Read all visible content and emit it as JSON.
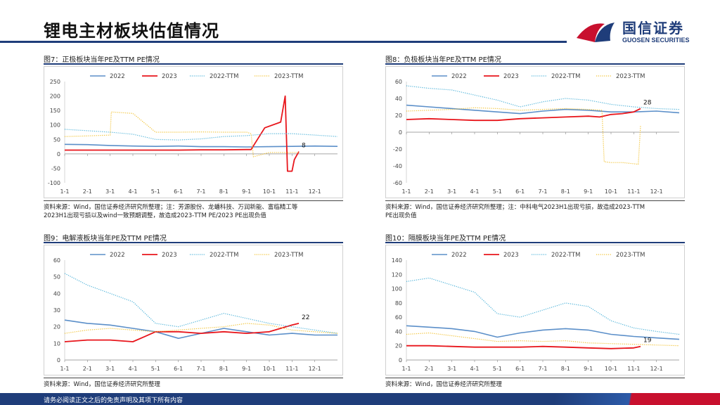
{
  "page": {
    "title": "锂电主材板块估值情况",
    "logo_cn": "国信证券",
    "logo_en": "GUOSEN SECURITIES",
    "footer": "请务必阅读正文之后的免责声明及其项下所有内容",
    "brand_colors": {
      "navy": "#1f3d7a",
      "red": "#c8102e"
    }
  },
  "legend": [
    "2022",
    "2023",
    "2022-TTM",
    "2023-TTM"
  ],
  "series_colors": {
    "2022": "#5b8fc9",
    "2023": "#e8151b",
    "2022-TTM": "#4fb3d9",
    "2023-TTM": "#f2c232"
  },
  "x_ticks": [
    "1-1",
    "2-1",
    "3-1",
    "4-1",
    "5-1",
    "6-1",
    "7-1",
    "8-1",
    "9-1",
    "10-1",
    "11-1",
    "12-1"
  ],
  "panels": [
    {
      "caption": "图7：正极板块当年PE及TTM PE情况",
      "source": "资料来源：Wind，国信证券经济研究所整理；注：芳源股份、龙蟠科技、万润新能、富临精工等",
      "source2": "2023H1出现亏损以及wind一致预期调整，故造成2023-TTM PE/2023 PE出现负值"
    },
    {
      "caption": "图8：负极板块当年PE及TTM PE情况",
      "source": "资料来源：Wind，国信证券经济研究所整理；注：中科电气2023H1出现亏损，故造成2023-TTM",
      "source2": "PE出现负值"
    },
    {
      "caption": "图9：电解液板块当年PE及TTM PE情况",
      "source": "资料来源：Wind，国信证券经济研究所整理",
      "source2": ""
    },
    {
      "caption": "图10：隔膜板块当年PE及TTM PE情况",
      "source": "资料来源：Wind，国信证券经济研究所整理",
      "source2": ""
    }
  ],
  "chart_data": [
    {
      "type": "line",
      "ylim": [
        -100,
        250
      ],
      "yticks": [
        -100,
        -50,
        0,
        50,
        100,
        150,
        200,
        250
      ],
      "annotation": {
        "text": "8",
        "x": 10.3,
        "y": 8
      },
      "series": [
        {
          "name": "2022",
          "x": [
            0,
            1,
            2,
            3,
            4,
            5,
            6,
            7,
            8,
            9,
            10,
            11,
            12
          ],
          "values": [
            33,
            32,
            29,
            27,
            26,
            27,
            25,
            25,
            24,
            25,
            26,
            27,
            26
          ]
        },
        {
          "name": "2023",
          "x": [
            0,
            1,
            2,
            3,
            4,
            5,
            6,
            7,
            8,
            8.2,
            8.8,
            9.5,
            9.7,
            9.8,
            9.85,
            10.0,
            10.1,
            10.3
          ],
          "values": [
            13,
            13,
            13,
            13,
            13,
            13,
            14,
            14,
            15,
            15,
            90,
            110,
            200,
            -60,
            -60,
            -60,
            -20,
            8
          ]
        },
        {
          "name": "2022-TTM",
          "x": [
            0,
            1,
            2,
            3,
            4,
            5,
            6,
            7,
            8,
            9,
            10,
            11,
            12
          ],
          "values": [
            85,
            80,
            75,
            68,
            50,
            48,
            52,
            60,
            63,
            70,
            70,
            65,
            60
          ]
        },
        {
          "name": "2023-TTM",
          "x": [
            0,
            1,
            2,
            2.05,
            3,
            4,
            5,
            6,
            7,
            8,
            8.2,
            8.3,
            9,
            9.5,
            10.3
          ],
          "values": [
            60,
            62,
            65,
            145,
            140,
            75,
            75,
            76,
            75,
            75,
            70,
            -10,
            5,
            5,
            5
          ]
        }
      ]
    },
    {
      "type": "line",
      "ylim": [
        -60,
        60
      ],
      "yticks": [
        -60,
        -40,
        -20,
        0,
        20,
        40,
        60
      ],
      "annotation": {
        "text": "28",
        "x": 10.3,
        "y": 28
      },
      "series": [
        {
          "name": "2022",
          "x": [
            0,
            1,
            2,
            3,
            4,
            5,
            6,
            7,
            8,
            9,
            10,
            11,
            12
          ],
          "values": [
            32,
            30,
            28,
            26,
            24,
            22,
            25,
            27,
            26,
            24,
            24,
            25,
            23
          ]
        },
        {
          "name": "2023",
          "x": [
            0,
            1,
            2,
            3,
            4,
            5,
            6,
            7,
            8,
            8.5,
            9,
            9.5,
            10,
            10.3
          ],
          "values": [
            15,
            16,
            15,
            14,
            14,
            16,
            17,
            18,
            19,
            18,
            21,
            22,
            24,
            28
          ]
        },
        {
          "name": "2022-TTM",
          "x": [
            0,
            1,
            2,
            3,
            4,
            5,
            6,
            7,
            8,
            9,
            10,
            11,
            12
          ],
          "values": [
            55,
            52,
            50,
            44,
            38,
            30,
            36,
            40,
            38,
            33,
            30,
            28,
            27
          ]
        },
        {
          "name": "2023-TTM",
          "x": [
            0,
            1,
            2,
            3,
            4,
            5,
            6,
            7,
            8,
            8.6,
            8.7,
            9,
            9.5,
            10.2,
            10.3
          ],
          "values": [
            25,
            26,
            27,
            29,
            28,
            26,
            27,
            28,
            27,
            26,
            -35,
            -36,
            -36,
            -38,
            8
          ]
        }
      ]
    },
    {
      "type": "line",
      "ylim": [
        0,
        60
      ],
      "yticks": [
        0,
        10,
        20,
        30,
        40,
        50,
        60
      ],
      "annotation": {
        "text": "22",
        "x": 10.3,
        "y": 22
      },
      "series": [
        {
          "name": "2022",
          "x": [
            0,
            1,
            2,
            3,
            4,
            5,
            6,
            7,
            8,
            9,
            10,
            11,
            12
          ],
          "values": [
            24,
            22,
            21,
            19,
            17,
            13,
            16,
            19,
            17,
            15,
            16,
            15,
            15
          ]
        },
        {
          "name": "2023",
          "x": [
            0,
            1,
            2,
            3,
            3.5,
            4,
            5,
            6,
            7,
            8,
            9,
            10,
            10.3
          ],
          "values": [
            11,
            12,
            12,
            11,
            14,
            17,
            17,
            16,
            17,
            16,
            17,
            21,
            22
          ]
        },
        {
          "name": "2022-TTM",
          "x": [
            0,
            1,
            2,
            3,
            4,
            5,
            6,
            7,
            8,
            9,
            10,
            11,
            12
          ],
          "values": [
            52,
            45,
            40,
            35,
            22,
            20,
            24,
            28,
            25,
            22,
            20,
            18,
            16
          ]
        },
        {
          "name": "2023-TTM",
          "x": [
            0,
            1,
            2,
            3,
            4,
            5,
            6,
            7,
            8,
            9,
            10,
            11,
            12
          ],
          "values": [
            16,
            18,
            19,
            18,
            17,
            18,
            19,
            20,
            22,
            21,
            18,
            17,
            16
          ]
        }
      ]
    },
    {
      "type": "line",
      "ylim": [
        0,
        140
      ],
      "yticks": [
        0,
        20,
        40,
        60,
        80,
        100,
        120,
        140
      ],
      "annotation": {
        "text": "19",
        "x": 10.3,
        "y": 19
      },
      "series": [
        {
          "name": "2022",
          "x": [
            0,
            1,
            2,
            3,
            4,
            5,
            6,
            7,
            8,
            9,
            10,
            11,
            12
          ],
          "values": [
            48,
            46,
            44,
            40,
            32,
            38,
            42,
            44,
            42,
            36,
            33,
            31,
            29
          ]
        },
        {
          "name": "2023",
          "x": [
            0,
            1,
            2,
            3,
            4,
            5,
            6,
            7,
            8,
            9,
            10,
            10.3
          ],
          "values": [
            20,
            20,
            19,
            18,
            18,
            18,
            19,
            18,
            17,
            16,
            17,
            19
          ]
        },
        {
          "name": "2022-TTM",
          "x": [
            0,
            1,
            2,
            3,
            4,
            5,
            6,
            7,
            8,
            9,
            10,
            11,
            12
          ],
          "values": [
            110,
            115,
            105,
            95,
            65,
            60,
            70,
            80,
            75,
            55,
            45,
            40,
            36
          ]
        },
        {
          "name": "2023-TTM",
          "x": [
            0,
            1,
            2,
            3,
            4,
            5,
            6,
            7,
            8,
            9,
            10,
            11,
            12
          ],
          "values": [
            36,
            38,
            34,
            30,
            26,
            27,
            26,
            27,
            24,
            23,
            22,
            21,
            20
          ]
        }
      ]
    }
  ]
}
